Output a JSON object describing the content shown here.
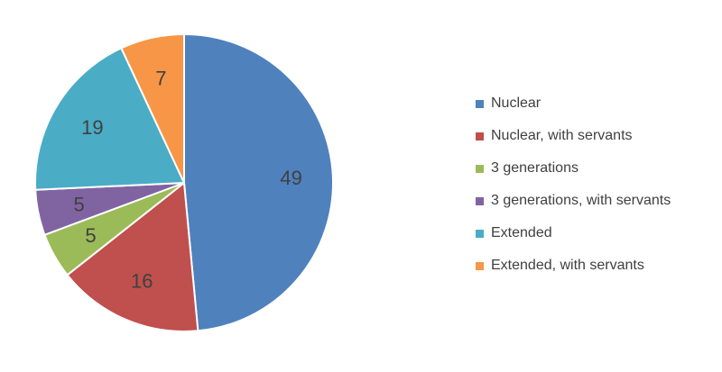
{
  "chart_data": {
    "type": "pie",
    "categories": [
      "Nuclear",
      "Nuclear, with servants",
      "3 generations",
      "3 generations, with servants",
      "Extended",
      "Extended, with servants"
    ],
    "values": [
      49,
      16,
      5,
      5,
      19,
      7
    ],
    "colors": [
      "#4f81bd",
      "#c0504d",
      "#9bbb59",
      "#8064a2",
      "#4bacc6",
      "#f79646"
    ],
    "title": "",
    "start_angle": "12 o'clock",
    "direction": "clockwise",
    "legend_position": "right"
  },
  "legend": {
    "items": [
      {
        "label": "Nuclear"
      },
      {
        "label": "Nuclear, with servants"
      },
      {
        "label": "3 generations"
      },
      {
        "label": "3 generations, with servants"
      },
      {
        "label": "Extended"
      },
      {
        "label": "Extended, with servants"
      }
    ]
  }
}
